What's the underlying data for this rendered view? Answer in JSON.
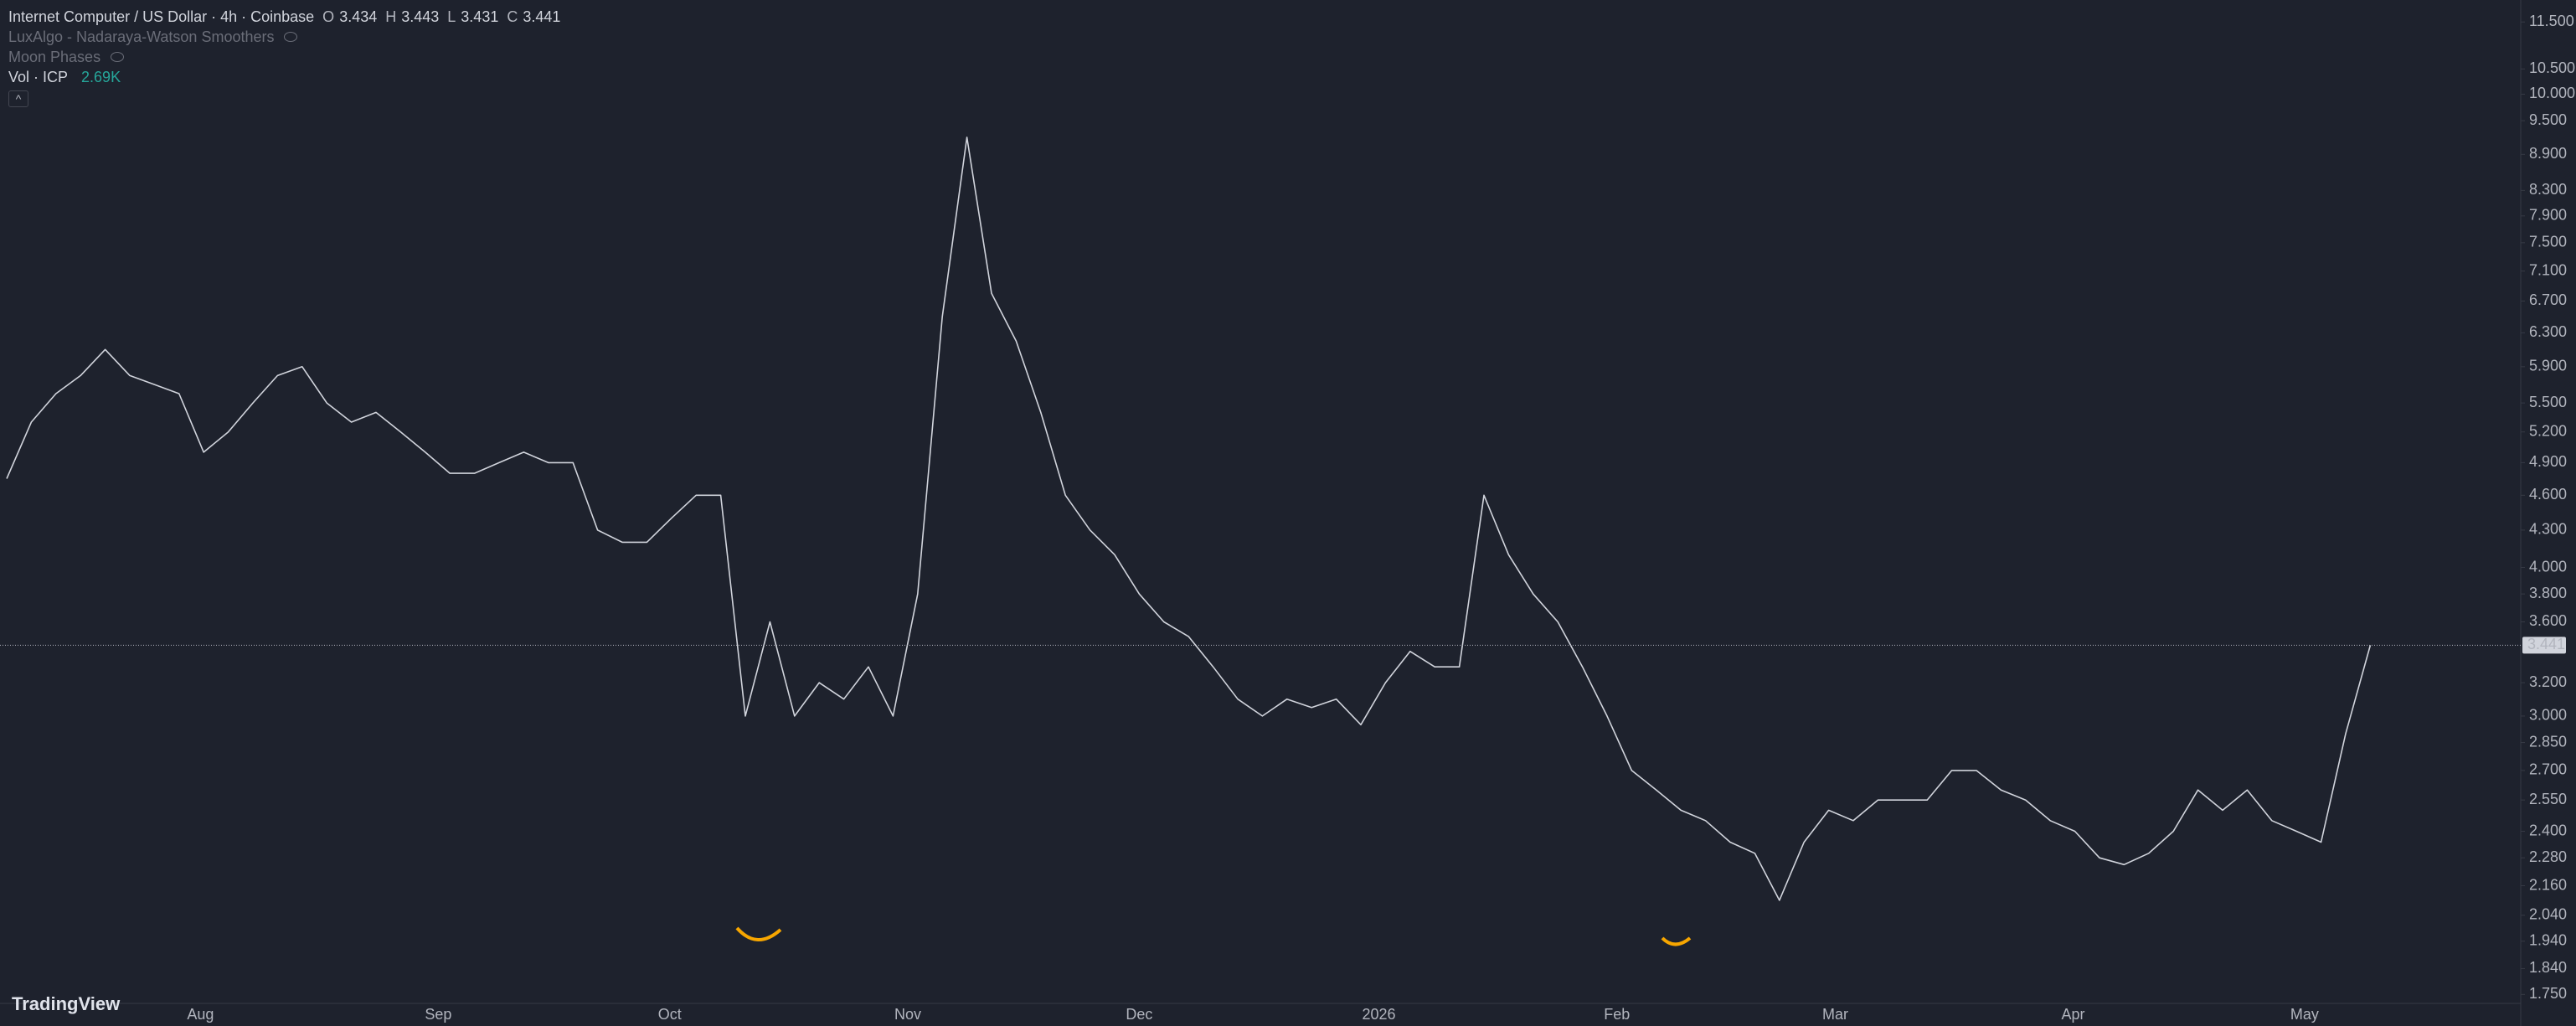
{
  "header": {
    "symbol": "Internet Computer / US Dollar · 4h · Coinbase",
    "ohlc": [
      {
        "label": "O",
        "value": 3.434
      },
      {
        "label": "H",
        "value": 3.443
      },
      {
        "label": "L",
        "value": 3.431
      },
      {
        "label": "C",
        "value": 3.441
      }
    ]
  },
  "indicators": [
    "LuxAlgo - Nadaraya-Watson Smoothers",
    "Moon Phases"
  ],
  "volume": {
    "label": "Vol · ICP",
    "value": "2.69K"
  },
  "logo": "TradingView",
  "chart_data": {
    "type": "line",
    "log_scale": true,
    "grid": false,
    "color": "#d1d4dc",
    "x_labels": [
      "Aug",
      "Sep",
      "Oct",
      "Nov",
      "Dec",
      "2026",
      "Feb",
      "Mar",
      "Apr",
      "May"
    ],
    "values": [
      4.75,
      5.3,
      5.6,
      5.8,
      6.1,
      5.8,
      5.7,
      5.6,
      5.0,
      5.2,
      5.5,
      5.8,
      5.9,
      5.5,
      5.3,
      5.4,
      5.2,
      5.0,
      4.8,
      4.8,
      4.9,
      5.0,
      4.9,
      4.9,
      4.3,
      4.2,
      4.2,
      4.4,
      4.6,
      4.6,
      3.0,
      3.6,
      3.0,
      3.2,
      3.1,
      3.3,
      3.0,
      3.8,
      6.5,
      9.2,
      6.8,
      6.2,
      5.4,
      4.6,
      4.3,
      4.1,
      3.8,
      3.6,
      3.5,
      3.3,
      3.1,
      3.0,
      3.1,
      3.05,
      3.1,
      2.95,
      3.2,
      3.4,
      3.3,
      3.3,
      4.6,
      4.1,
      3.8,
      3.6,
      3.3,
      3.0,
      2.7,
      2.6,
      2.5,
      2.45,
      2.35,
      2.3,
      2.1,
      2.35,
      2.5,
      2.45,
      2.55,
      2.55,
      2.55,
      2.7,
      2.7,
      2.6,
      2.55,
      2.45,
      2.4,
      2.28,
      2.25,
      2.3,
      2.4,
      2.6,
      2.5,
      2.6,
      2.45,
      2.4,
      2.35,
      2.9,
      3.441
    ],
    "ylim": [
      1.72,
      12.0
    ],
    "yticks": [
      {
        "value": 11.5,
        "label": "11.500"
      },
      {
        "value": 10.5,
        "label": "10.500"
      },
      {
        "value": 10.0,
        "label": "10.000"
      },
      {
        "value": 9.5,
        "label": "9.500"
      },
      {
        "value": 8.9,
        "label": "8.900"
      },
      {
        "value": 8.3,
        "label": "8.300"
      },
      {
        "value": 7.9,
        "label": "7.900"
      },
      {
        "value": 7.5,
        "label": "7.500"
      },
      {
        "value": 7.1,
        "label": "7.100"
      },
      {
        "value": 6.7,
        "label": "6.700"
      },
      {
        "value": 6.3,
        "label": "6.300"
      },
      {
        "value": 5.9,
        "label": "5.900"
      },
      {
        "value": 5.5,
        "label": "5.500"
      },
      {
        "value": 5.2,
        "label": "5.200"
      },
      {
        "value": 4.9,
        "label": "4.900"
      },
      {
        "value": 4.6,
        "label": "4.600"
      },
      {
        "value": 4.3,
        "label": "4.300"
      },
      {
        "value": 4.0,
        "label": "4.000"
      },
      {
        "value": 3.8,
        "label": "3.800"
      },
      {
        "value": 3.6,
        "label": "3.600"
      },
      {
        "value": 3.2,
        "label": "3.200"
      },
      {
        "value": 3.0,
        "label": "3.000"
      },
      {
        "value": 2.85,
        "label": "2.850"
      },
      {
        "value": 2.7,
        "label": "2.700"
      },
      {
        "value": 2.55,
        "label": "2.550"
      },
      {
        "value": 2.4,
        "label": "2.400"
      },
      {
        "value": 2.28,
        "label": "2.280"
      },
      {
        "value": 2.16,
        "label": "2.160"
      },
      {
        "value": 2.04,
        "label": "2.040"
      },
      {
        "value": 1.94,
        "label": "1.940"
      },
      {
        "value": 1.84,
        "label": "1.840"
      },
      {
        "value": 1.75,
        "label": "1.750"
      }
    ]
  }
}
